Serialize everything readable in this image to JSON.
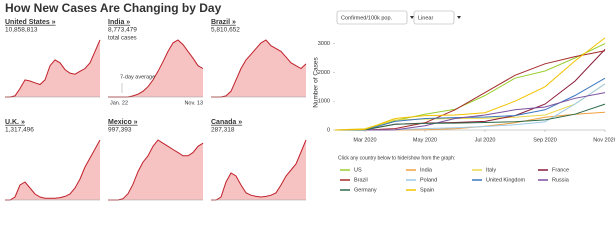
{
  "chart_data": [
    {
      "type": "area",
      "title": "How New Cases Are Changing by Day",
      "panels": [
        {
          "name": "United States »",
          "total": {
            "value": 10858813,
            "label": "10,858,813"
          },
          "values": [
            0,
            0,
            2,
            15,
            30,
            28,
            25,
            22,
            30,
            55,
            65,
            60,
            48,
            42,
            40,
            45,
            50,
            60,
            80,
            100
          ]
        },
        {
          "name": "India »",
          "total": {
            "value": 8773479,
            "label": "8,773,479"
          },
          "total_note": "total cases",
          "annotations": [
            "7-day average",
            "Jan. 22",
            "Nov. 13"
          ],
          "values": [
            0,
            0,
            0,
            0,
            0,
            2,
            5,
            10,
            18,
            30,
            45,
            62,
            80,
            95,
            100,
            92,
            80,
            68,
            55,
            50
          ]
        },
        {
          "name": "Brazil »",
          "total": {
            "value": 5810652,
            "label": "5,810,652"
          },
          "values": [
            0,
            0,
            0,
            2,
            10,
            30,
            50,
            65,
            75,
            85,
            95,
            100,
            90,
            85,
            80,
            70,
            60,
            55,
            50,
            58
          ]
        },
        {
          "name": "U.K. »",
          "total": {
            "value": 1317496,
            "label": "1,317,496"
          },
          "values": [
            0,
            0,
            5,
            25,
            30,
            20,
            10,
            5,
            3,
            3,
            3,
            4,
            6,
            10,
            20,
            35,
            55,
            70,
            85,
            100
          ]
        },
        {
          "name": "Mexico »",
          "total": {
            "value": 997393,
            "label": "997,393"
          },
          "values": [
            0,
            0,
            0,
            2,
            10,
            25,
            45,
            60,
            70,
            85,
            95,
            90,
            85,
            80,
            75,
            70,
            70,
            75,
            85,
            90
          ]
        },
        {
          "name": "Canada »",
          "total": {
            "value": 287318,
            "label": "287,318"
          },
          "values": [
            0,
            0,
            5,
            30,
            45,
            40,
            25,
            12,
            8,
            6,
            5,
            6,
            8,
            12,
            25,
            40,
            50,
            60,
            80,
            100
          ]
        }
      ]
    },
    {
      "type": "line",
      "controls": [
        "Confirmed/100k pop.",
        "Linear"
      ],
      "y_label": "Number of Cases",
      "categories": [
        null,
        "Mar 2020",
        null,
        "May 2020",
        null,
        "Jul 2020",
        null,
        "Sep 2020",
        null,
        "Nov 2020"
      ],
      "ylim": [
        0,
        3300
      ],
      "yticks": [
        0,
        1000,
        2000,
        3000
      ],
      "legend_note": "Click any country below to hide/show from the graph:",
      "series": [
        {
          "name": "US",
          "color": "#9acd32",
          "values": [
            0,
            5,
            330,
            550,
            720,
            1200,
            1800,
            2050,
            2500,
            3000
          ]
        },
        {
          "name": "India",
          "color": "#f0a040",
          "values": [
            0,
            0,
            0,
            10,
            40,
            130,
            250,
            440,
            550,
            620
          ]
        },
        {
          "name": "Italy",
          "color": "#e8d84a",
          "values": [
            0,
            50,
            350,
            380,
            400,
            410,
            440,
            520,
            900,
            1600
          ]
        },
        {
          "name": "France",
          "color": "#8b1a3a",
          "values": [
            0,
            10,
            200,
            240,
            260,
            300,
            500,
            900,
            1700,
            2800
          ]
        },
        {
          "name": "Brazil",
          "color": "#a52a2a",
          "values": [
            0,
            0,
            50,
            250,
            700,
            1300,
            1900,
            2300,
            2550,
            2750
          ]
        },
        {
          "name": "Poland",
          "color": "#9ecbe8",
          "values": [
            0,
            0,
            10,
            50,
            80,
            120,
            180,
            280,
            900,
            1600
          ]
        },
        {
          "name": "United Kingdom",
          "color": "#3a78c0",
          "values": [
            0,
            5,
            300,
            400,
            430,
            450,
            500,
            700,
            1200,
            1800
          ]
        },
        {
          "name": "Russia",
          "color": "#7b4fa0",
          "values": [
            0,
            0,
            5,
            150,
            400,
            520,
            700,
            800,
            1100,
            1300
          ]
        },
        {
          "name": "Germany",
          "color": "#2e6b4a",
          "values": [
            0,
            5,
            200,
            230,
            240,
            260,
            290,
            350,
            550,
            900
          ]
        },
        {
          "name": "Spain",
          "color": "#f2c200",
          "values": [
            0,
            20,
            400,
            500,
            520,
            600,
            1000,
            1500,
            2400,
            3200
          ]
        }
      ]
    }
  ]
}
